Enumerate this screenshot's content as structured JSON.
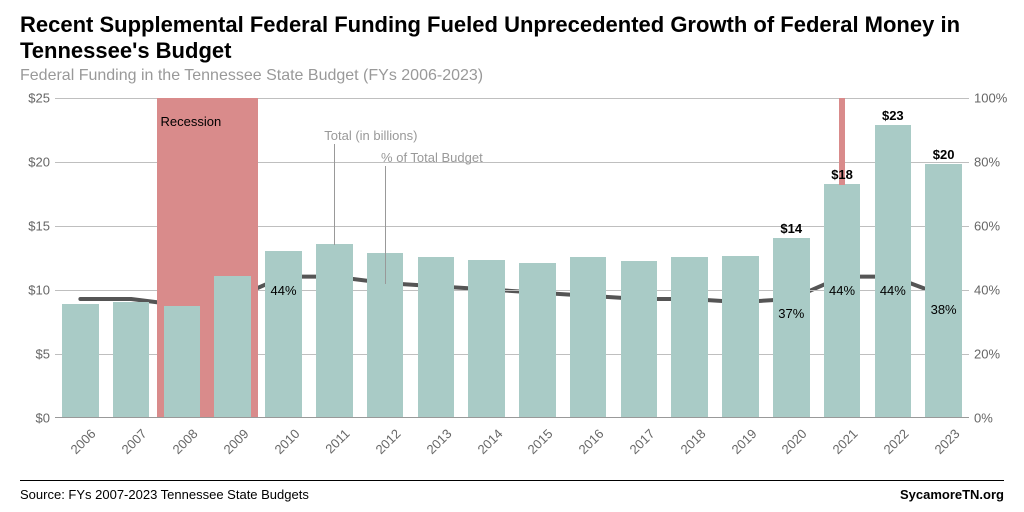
{
  "title": "Recent Supplemental Federal Funding Fueled Unprecedented Growth of Federal Money in Tennessee's Budget",
  "subtitle": "Federal Funding in the Tennessee State Budget (FYs 2006-2023)",
  "footer_source": "Source: FYs 2007-2023 Tennessee State Budgets",
  "footer_brand": "SycamoreTN.org",
  "chart": {
    "type": "bar+line",
    "background_color": "#ffffff",
    "bar_color": "#a9cbc6",
    "recession_color": "#d98b8b",
    "line_color": "#555555",
    "line_width": 4,
    "grid_color": "#bfbfbf",
    "axis_font_color": "#666666",
    "axis_fontsize": 13,
    "title_fontsize": 22,
    "subtitle_fontsize": 16,
    "y_left": {
      "min": 0,
      "max": 25,
      "step": 5,
      "prefix": "$"
    },
    "y_right": {
      "min": 0,
      "max": 100,
      "step": 20,
      "suffix": "%"
    },
    "recession_span": [
      2008,
      2009
    ],
    "recession_label": "Recession",
    "annotations": {
      "total_label": "Total (in billions)",
      "pct_label": "% of Total Budget"
    },
    "years": [
      2006,
      2007,
      2008,
      2009,
      2010,
      2011,
      2012,
      2013,
      2014,
      2015,
      2016,
      2017,
      2018,
      2019,
      2020,
      2021,
      2022,
      2023
    ],
    "bar_values": [
      8.8,
      9.0,
      8.7,
      11.0,
      13.0,
      13.5,
      12.8,
      12.5,
      12.3,
      12.0,
      12.5,
      12.2,
      12.5,
      12.6,
      14.0,
      18.2,
      22.8,
      19.8
    ],
    "extra_bar": {
      "year": 2021,
      "from": 18.2,
      "to": 26.5
    },
    "line_pct": [
      37,
      37,
      35,
      37,
      44,
      44,
      42,
      41,
      40,
      39,
      38,
      37,
      37,
      36,
      37,
      44,
      44,
      38
    ],
    "bar_label_points": [
      {
        "year": 2020,
        "text": "$14"
      },
      {
        "year": 2021,
        "text": "$18"
      },
      {
        "year": 2022,
        "text": "$23"
      },
      {
        "year": 2023,
        "text": "$20"
      }
    ],
    "pct_label_points": [
      {
        "year": 2010,
        "text": "44%"
      },
      {
        "year": 2020,
        "text": "37%"
      },
      {
        "year": 2021,
        "text": "44%"
      },
      {
        "year": 2022,
        "text": "44%"
      },
      {
        "year": 2023,
        "text": "38%"
      }
    ]
  }
}
